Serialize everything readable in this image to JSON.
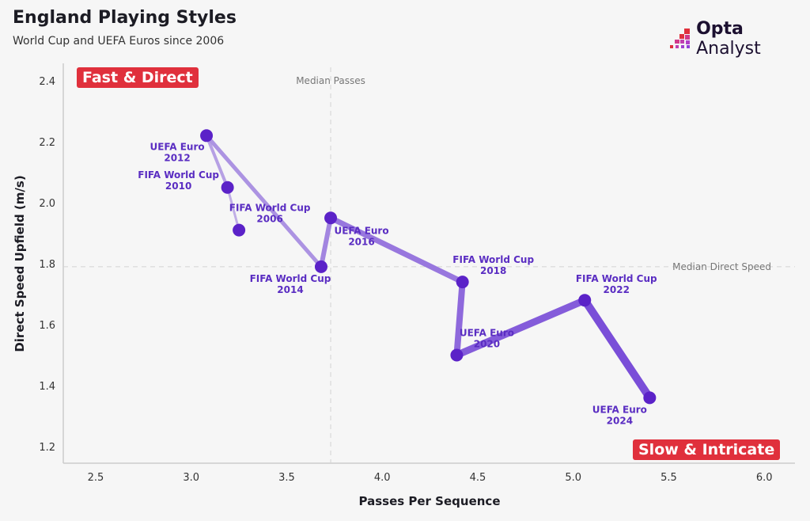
{
  "header": {
    "title": "England Playing Styles",
    "subtitle": "World Cup and UEFA Euros since 2006"
  },
  "logo": {
    "bold": "Opta",
    "light": " Analyst"
  },
  "quadrants": {
    "top_left": "Fast & Direct",
    "bottom_right": "Slow & Intricate"
  },
  "colors": {
    "point": "#5b22c8",
    "line_start": "#c0aee6",
    "line_end": "#7a4ed8",
    "badge": "#e0303c"
  },
  "chart_data": {
    "type": "scatter",
    "title": "England Playing Styles",
    "xlabel": "Passes Per Sequence",
    "ylabel": "Direct Speed Upfield (m/s)",
    "xlim": [
      2.35,
      6.1
    ],
    "ylim": [
      1.15,
      2.47
    ],
    "xticks": [
      "2.5",
      "3.0",
      "3.5",
      "4.0",
      "4.5",
      "5.0",
      "5.5",
      "6.0"
    ],
    "yticks": [
      "1.2",
      "1.4",
      "1.6",
      "1.8",
      "2.0",
      "2.2",
      "2.4"
    ],
    "median_x": {
      "value": 3.73,
      "label": "Median Passes"
    },
    "median_y": {
      "value": 1.79,
      "label": "Median Direct Speed"
    },
    "points": [
      {
        "line1": "FIFA World Cup",
        "line2": "2006",
        "x": 3.25,
        "y": 1.91
      },
      {
        "line1": "FIFA World Cup",
        "line2": "2010",
        "x": 3.19,
        "y": 2.05
      },
      {
        "line1": "UEFA Euro",
        "line2": "2012",
        "x": 3.08,
        "y": 2.22
      },
      {
        "line1": "FIFA World Cup",
        "line2": "2014",
        "x": 3.68,
        "y": 1.79
      },
      {
        "line1": "UEFA Euro",
        "line2": "2016",
        "x": 3.73,
        "y": 1.95
      },
      {
        "line1": "FIFA World Cup",
        "line2": "2018",
        "x": 4.42,
        "y": 1.74
      },
      {
        "line1": "UEFA Euro",
        "line2": "2020",
        "x": 4.39,
        "y": 1.5
      },
      {
        "line1": "FIFA World Cup",
        "line2": "2022",
        "x": 5.06,
        "y": 1.68
      },
      {
        "line1": "UEFA Euro",
        "line2": "2024",
        "x": 5.4,
        "y": 1.36
      }
    ]
  }
}
